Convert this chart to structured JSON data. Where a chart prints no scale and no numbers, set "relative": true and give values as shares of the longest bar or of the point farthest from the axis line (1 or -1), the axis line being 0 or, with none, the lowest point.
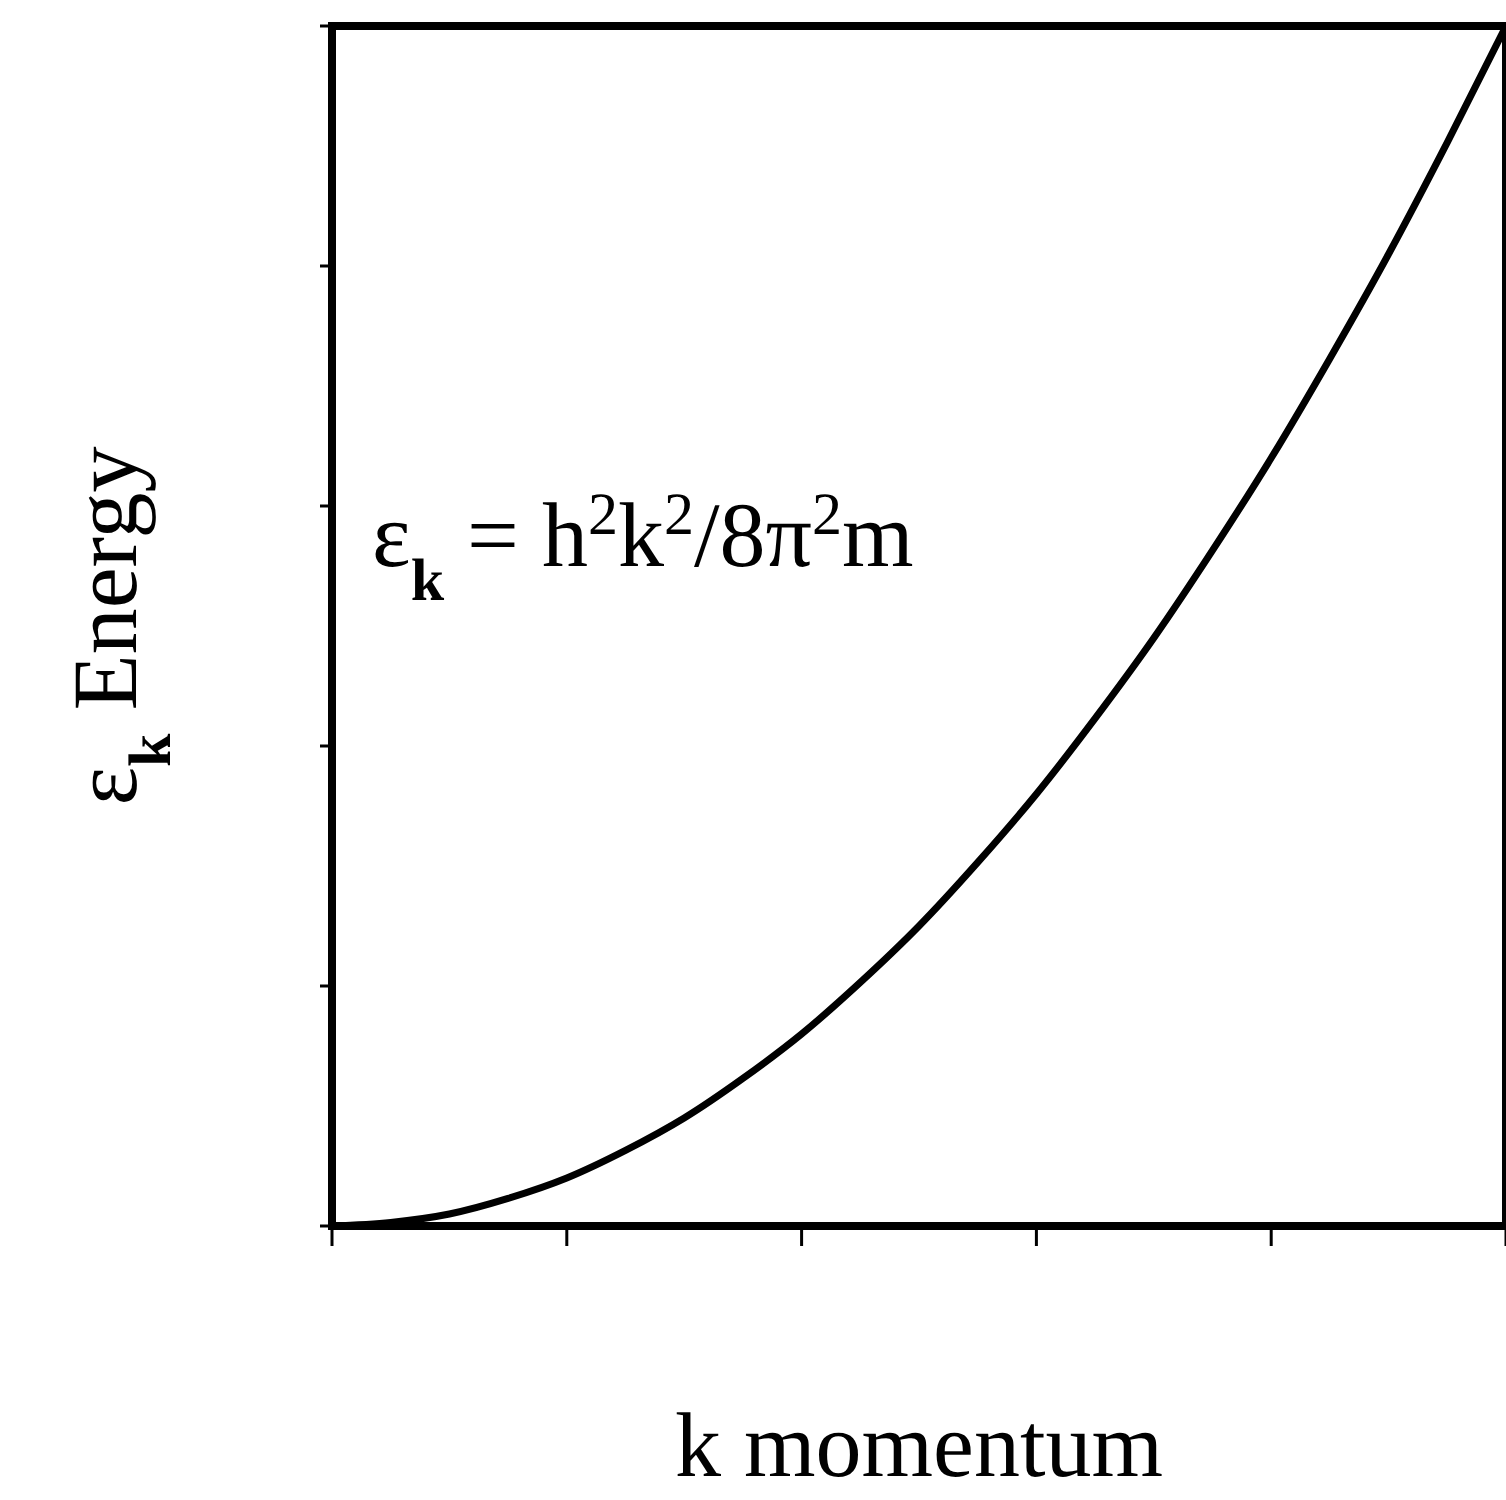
{
  "chart_data": {
    "type": "line",
    "relative": true,
    "xlabel": "k  momentum",
    "ylabel": "ε$_{k}$ Energy",
    "annotations": [
      "ε$_{k}$ = h$^{2}$k$^{2}$/8π$^{2}$m"
    ],
    "categories": [
      null,
      null,
      null,
      null,
      null,
      null,
      null,
      null,
      null,
      null,
      null,
      null,
      null,
      null,
      null,
      null,
      null,
      null,
      null,
      null,
      null
    ],
    "series": [
      {
        "color": "#000000",
        "values": [
          0,
          0.003,
          0.01,
          0.023,
          0.04,
          0.063,
          0.09,
          0.123,
          0.16,
          0.203,
          0.25,
          0.303,
          0.36,
          0.423,
          0.49,
          0.563,
          0.64,
          0.723,
          0.81,
          0.903,
          1
        ]
      }
    ],
    "line_style": "solid"
  }
}
